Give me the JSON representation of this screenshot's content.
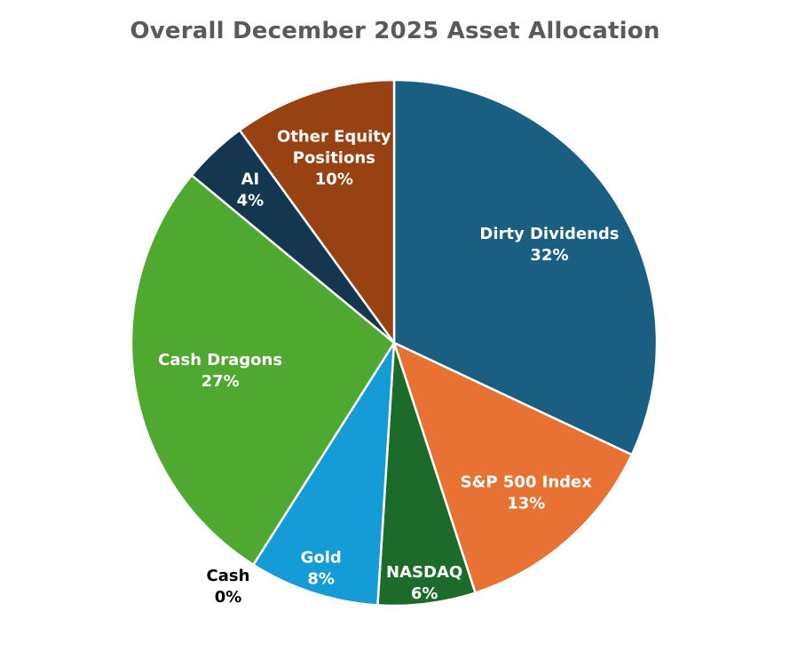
{
  "chart_data": {
    "type": "pie",
    "title": "Overall December 2025 Asset Allocation",
    "slices": [
      {
        "label": "Dirty Dividends",
        "value": 32,
        "value_label": "32%",
        "color": "#1a5e82"
      },
      {
        "label": "S&P 500 Index",
        "value": 13,
        "value_label": "13%",
        "color": "#e87234"
      },
      {
        "label": "NASDAQ",
        "value": 6,
        "value_label": "6%",
        "color": "#1d6b2a"
      },
      {
        "label": "Gold",
        "value": 8,
        "value_label": "8%",
        "color": "#159bd6"
      },
      {
        "label": "Cash",
        "value": 0,
        "value_label": "0%",
        "color": "#ffffff"
      },
      {
        "label": "Cash Dragons",
        "value": 27,
        "value_label": "27%",
        "color": "#4fa82f"
      },
      {
        "label": "AI",
        "value": 4,
        "value_label": "4%",
        "color": "#14374f"
      },
      {
        "label": "Other Equity Positions",
        "value": 10,
        "value_label": "10%",
        "color": "#984213"
      }
    ]
  }
}
